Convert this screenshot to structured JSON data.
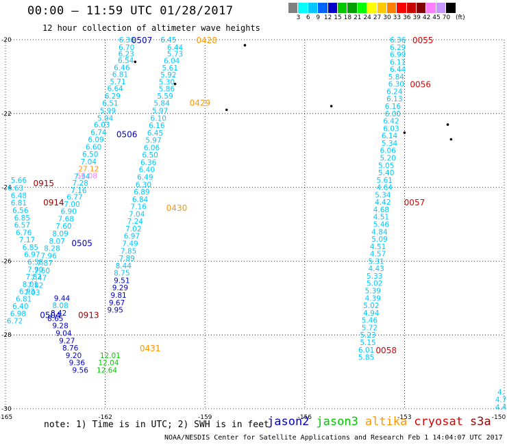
{
  "title": "00:00 – 11:59 UTC 01/28/2017",
  "subtitle": "12 hour collection of altimeter wave heights",
  "scale": {
    "unit": "(ft)",
    "labels": [
      "3",
      "6",
      "9",
      "12",
      "15",
      "18",
      "21",
      "24",
      "27",
      "30",
      "33",
      "36",
      "39",
      "42",
      "45",
      "70"
    ],
    "colors": [
      "#808080",
      "#00ffff",
      "#00c8ff",
      "#0064ff",
      "#0000c8",
      "#00c800",
      "#00a000",
      "#00ff00",
      "#ffff00",
      "#ffc800",
      "#ff8000",
      "#ff0000",
      "#c80000",
      "#800000",
      "#ff80ff",
      "#c896ff",
      "#000000"
    ]
  },
  "axes": {
    "lon_labels": [
      "-165",
      "-162",
      "-159",
      "-156",
      "-153",
      "-150"
    ],
    "lat_labels": [
      "-20",
      "-22",
      "-24",
      "-26",
      "-28",
      "-30"
    ]
  },
  "satellite_colors": {
    "jason2": "#0000c8",
    "jason3": "#00c800",
    "altika": "#ff9600",
    "cryosat": "#dc0000",
    "s3a": "#a00000"
  },
  "tracks": [
    {
      "color": "#00c8ff",
      "points": [
        {
          "lon": -161.35,
          "lat": -20.0,
          "v": "6.36"
        },
        {
          "lon": -161.36,
          "lat": -20.2,
          "v": "6.70"
        },
        {
          "lon": -161.37,
          "lat": -20.38,
          "v": "6.23"
        },
        {
          "lon": -161.38,
          "lat": -20.56,
          "v": "6.54"
        },
        {
          "lon": -161.5,
          "lat": -20.75,
          "v": "6.46"
        },
        {
          "lon": -161.55,
          "lat": -20.94,
          "v": "6.81"
        },
        {
          "lon": -161.62,
          "lat": -21.13,
          "v": "5.71"
        },
        {
          "lon": -161.7,
          "lat": -21.32,
          "v": "6.64"
        },
        {
          "lon": -161.78,
          "lat": -21.52,
          "v": "6.29"
        },
        {
          "lon": -161.85,
          "lat": -21.72,
          "v": "6.51"
        },
        {
          "lon": -161.92,
          "lat": -21.92,
          "v": "5.99"
        },
        {
          "lon": -162.0,
          "lat": -22.12,
          "v": "5.94"
        },
        {
          "lon": -162.1,
          "lat": -22.3,
          "v": "6.03"
        },
        {
          "lon": -162.2,
          "lat": -22.5,
          "v": "6.74"
        },
        {
          "lon": -162.28,
          "lat": -22.7,
          "v": "6.09"
        },
        {
          "lon": -162.35,
          "lat": -22.9,
          "v": "6.60"
        },
        {
          "lon": -162.45,
          "lat": -23.1,
          "v": "6.50"
        },
        {
          "lon": -162.5,
          "lat": -23.3,
          "v": "7.04"
        },
        {
          "lon": -162.7,
          "lat": -23.7,
          "v": "7.34"
        },
        {
          "lon": -162.75,
          "lat": -23.88,
          "v": "7.28"
        },
        {
          "lon": -162.8,
          "lat": -24.08,
          "v": "7.16"
        },
        {
          "lon": -162.92,
          "lat": -24.26,
          "v": "6.77"
        },
        {
          "lon": -163.0,
          "lat": -24.45,
          "v": "7.00"
        },
        {
          "lon": -163.1,
          "lat": -24.65,
          "v": "6.90"
        },
        {
          "lon": -163.18,
          "lat": -24.85,
          "v": "7.68"
        },
        {
          "lon": -163.25,
          "lat": -25.05,
          "v": "7.60"
        },
        {
          "lon": -163.35,
          "lat": -25.25,
          "v": "8.09"
        },
        {
          "lon": -163.45,
          "lat": -25.45,
          "v": "8.07"
        },
        {
          "lon": -163.6,
          "lat": -25.65,
          "v": "8.28"
        },
        {
          "lon": -163.7,
          "lat": -25.85,
          "v": "7.96"
        },
        {
          "lon": -163.82,
          "lat": -26.05,
          "v": "7.87"
        },
        {
          "lon": -163.9,
          "lat": -26.25,
          "v": "7.60"
        },
        {
          "lon": -164.0,
          "lat": -26.45,
          "v": "7.47"
        },
        {
          "lon": -164.1,
          "lat": -26.65,
          "v": "7.82"
        },
        {
          "lon": -164.2,
          "lat": -26.85,
          "v": "7.03"
        }
      ]
    },
    {
      "color": "#00c8ff",
      "points": [
        {
          "lon": -164.6,
          "lat": -23.8,
          "v": "5.66"
        },
        {
          "lon": -164.7,
          "lat": -24.02,
          "v": "6.63"
        },
        {
          "lon": -164.6,
          "lat": -24.22,
          "v": "6.48"
        },
        {
          "lon": -164.6,
          "lat": -24.42,
          "v": "6.81"
        },
        {
          "lon": -164.55,
          "lat": -24.62,
          "v": "6.56"
        },
        {
          "lon": -164.5,
          "lat": -24.82,
          "v": "6.85"
        },
        {
          "lon": -164.5,
          "lat": -25.02,
          "v": "6.57"
        },
        {
          "lon": -164.45,
          "lat": -25.22,
          "v": "6.76"
        },
        {
          "lon": -164.35,
          "lat": -25.42,
          "v": "7.17"
        },
        {
          "lon": -164.25,
          "lat": -25.62,
          "v": "6.85"
        },
        {
          "lon": -164.2,
          "lat": -25.82,
          "v": "6.97"
        },
        {
          "lon": -164.1,
          "lat": -26.02,
          "v": "6.58"
        },
        {
          "lon": -164.1,
          "lat": -26.22,
          "v": "7.90"
        },
        {
          "lon": -164.15,
          "lat": -26.42,
          "v": "7.82"
        },
        {
          "lon": -164.25,
          "lat": -26.62,
          "v": "8.01"
        },
        {
          "lon": -164.35,
          "lat": -26.82,
          "v": "6.93"
        },
        {
          "lon": -164.45,
          "lat": -27.02,
          "v": "6.81"
        },
        {
          "lon": -164.55,
          "lat": -27.22,
          "v": "6.40"
        },
        {
          "lon": -164.62,
          "lat": -27.42,
          "v": "6.98"
        },
        {
          "lon": -164.72,
          "lat": -27.62,
          "v": "6.72"
        }
      ]
    },
    {
      "color": "#00c8ff",
      "points": [
        {
          "lon": -160.1,
          "lat": -20.0,
          "v": "6.45"
        },
        {
          "lon": -159.9,
          "lat": -20.2,
          "v": "6.44"
        },
        {
          "lon": -159.9,
          "lat": -20.38,
          "v": "5.73"
        },
        {
          "lon": -160.0,
          "lat": -20.57,
          "v": "6.04"
        },
        {
          "lon": -160.05,
          "lat": -20.76,
          "v": "5.61"
        },
        {
          "lon": -160.1,
          "lat": -20.95,
          "v": "5.92"
        },
        {
          "lon": -160.15,
          "lat": -21.14,
          "v": "5.30"
        },
        {
          "lon": -160.15,
          "lat": -21.33,
          "v": "5.86"
        },
        {
          "lon": -160.2,
          "lat": -21.52,
          "v": "5.59"
        },
        {
          "lon": -160.3,
          "lat": -21.72,
          "v": "5.84"
        },
        {
          "lon": -160.35,
          "lat": -21.92,
          "v": "5.97"
        },
        {
          "lon": -160.4,
          "lat": -22.12,
          "v": "6.10"
        },
        {
          "lon": -160.45,
          "lat": -22.32,
          "v": "6.16"
        },
        {
          "lon": -160.5,
          "lat": -22.52,
          "v": "6.45"
        },
        {
          "lon": -160.55,
          "lat": -22.72,
          "v": "5.97"
        },
        {
          "lon": -160.6,
          "lat": -22.92,
          "v": "6.06"
        },
        {
          "lon": -160.65,
          "lat": -23.12,
          "v": "6.50"
        },
        {
          "lon": -160.7,
          "lat": -23.32,
          "v": "6.36"
        },
        {
          "lon": -160.75,
          "lat": -23.52,
          "v": "6.40"
        },
        {
          "lon": -160.8,
          "lat": -23.72,
          "v": "6.49"
        },
        {
          "lon": -160.85,
          "lat": -23.92,
          "v": "6.30"
        },
        {
          "lon": -160.9,
          "lat": -24.12,
          "v": "6.89"
        },
        {
          "lon": -160.95,
          "lat": -24.32,
          "v": "6.84"
        },
        {
          "lon": -161.0,
          "lat": -24.52,
          "v": "7.16"
        },
        {
          "lon": -161.05,
          "lat": -24.72,
          "v": "7.04"
        },
        {
          "lon": -161.1,
          "lat": -24.92,
          "v": "7.24"
        },
        {
          "lon": -161.15,
          "lat": -25.12,
          "v": "7.02"
        },
        {
          "lon": -161.2,
          "lat": -25.32,
          "v": "6.97"
        },
        {
          "lon": -161.25,
          "lat": -25.52,
          "v": "7.49"
        },
        {
          "lon": -161.3,
          "lat": -25.72,
          "v": "7.85"
        },
        {
          "lon": -161.35,
          "lat": -25.92,
          "v": "7.89"
        },
        {
          "lon": -161.45,
          "lat": -26.12,
          "v": "8.44"
        },
        {
          "lon": -161.5,
          "lat": -26.32,
          "v": "8.75"
        }
      ]
    },
    {
      "color": "#0000c8",
      "points": [
        {
          "lon": -161.5,
          "lat": -26.52,
          "v": "9.51"
        },
        {
          "lon": -161.55,
          "lat": -26.72,
          "v": "9.29"
        },
        {
          "lon": -161.6,
          "lat": -26.92,
          "v": "9.81"
        },
        {
          "lon": -161.65,
          "lat": -27.12,
          "v": "9.67"
        },
        {
          "lon": -161.7,
          "lat": -27.32,
          "v": "9.95"
        }
      ]
    },
    {
      "color": "#0000c8",
      "points": [
        {
          "lon": -163.3,
          "lat": -27.0,
          "v": "9.44"
        },
        {
          "lon": -163.4,
          "lat": -27.4,
          "v": "8.42"
        },
        {
          "lon": -163.5,
          "lat": -27.55,
          "v": "8.65"
        },
        {
          "lon": -163.35,
          "lat": -27.75,
          "v": "9.28"
        },
        {
          "lon": -163.25,
          "lat": -27.95,
          "v": "9.04"
        },
        {
          "lon": -163.15,
          "lat": -28.15,
          "v": "9.27"
        },
        {
          "lon": -163.05,
          "lat": -28.35,
          "v": "8.76"
        },
        {
          "lon": -162.95,
          "lat": -28.55,
          "v": "9.20"
        },
        {
          "lon": -162.85,
          "lat": -28.75,
          "v": "9.36"
        },
        {
          "lon": -162.75,
          "lat": -28.95,
          "v": "9.56"
        }
      ]
    },
    {
      "color": "#00c8ff",
      "points": [
        {
          "lon": -163.35,
          "lat": -27.2,
          "v": "8.08"
        }
      ]
    },
    {
      "color": "#00c800",
      "points": [
        {
          "lon": -161.85,
          "lat": -28.55,
          "v": "12.01"
        },
        {
          "lon": -161.9,
          "lat": -28.75,
          "v": "12.04"
        },
        {
          "lon": -161.95,
          "lat": -28.95,
          "v": "12.64"
        }
      ]
    },
    {
      "color": "#ff9600",
      "points": [
        {
          "lon": -162.5,
          "lat": -23.5,
          "v": "27.12"
        }
      ]
    },
    {
      "color": "#ff80ff",
      "points": [
        {
          "lon": -162.55,
          "lat": -23.68,
          "v": "56.08"
        }
      ]
    },
    {
      "color": "#00c8ff",
      "points": [
        {
          "lon": -153.2,
          "lat": -20.0,
          "v": "6.36"
        },
        {
          "lon": -153.2,
          "lat": -20.2,
          "v": "6.29"
        },
        {
          "lon": -153.2,
          "lat": -20.4,
          "v": "6.99"
        },
        {
          "lon": -153.2,
          "lat": -20.6,
          "v": "6.11"
        },
        {
          "lon": -153.2,
          "lat": -20.8,
          "v": "6.44"
        },
        {
          "lon": -153.25,
          "lat": -21.0,
          "v": "5.84"
        },
        {
          "lon": -153.25,
          "lat": -21.2,
          "v": "6.30"
        },
        {
          "lon": -153.3,
          "lat": -21.4,
          "v": "6.24"
        },
        {
          "lon": -153.3,
          "lat": -21.6,
          "v": "6.13"
        },
        {
          "lon": -153.35,
          "lat": -21.8,
          "v": "6.16"
        },
        {
          "lon": -153.35,
          "lat": -22.0,
          "v": "6.00"
        },
        {
          "lon": -153.4,
          "lat": -22.2,
          "v": "6.42"
        },
        {
          "lon": -153.4,
          "lat": -22.4,
          "v": "6.03"
        },
        {
          "lon": -153.45,
          "lat": -22.6,
          "v": "6.14"
        },
        {
          "lon": -153.45,
          "lat": -22.8,
          "v": "5.34"
        },
        {
          "lon": -153.5,
          "lat": -23.0,
          "v": "6.06"
        },
        {
          "lon": -153.5,
          "lat": -23.2,
          "v": "5.20"
        },
        {
          "lon": -153.55,
          "lat": -23.4,
          "v": "5.05"
        },
        {
          "lon": -153.55,
          "lat": -23.6,
          "v": "5.40"
        },
        {
          "lon": -153.6,
          "lat": -23.8,
          "v": "5.61"
        },
        {
          "lon": -153.6,
          "lat": -24.0,
          "v": "4.64"
        },
        {
          "lon": -153.65,
          "lat": -24.2,
          "v": "5.34"
        },
        {
          "lon": -153.65,
          "lat": -24.4,
          "v": "4.42"
        },
        {
          "lon": -153.7,
          "lat": -24.6,
          "v": "4.68"
        },
        {
          "lon": -153.7,
          "lat": -24.8,
          "v": "4.51"
        },
        {
          "lon": -153.7,
          "lat": -25.0,
          "v": "5.46"
        },
        {
          "lon": -153.75,
          "lat": -25.2,
          "v": "4.84"
        },
        {
          "lon": -153.75,
          "lat": -25.4,
          "v": "5.09"
        },
        {
          "lon": -153.8,
          "lat": -25.6,
          "v": "4.51"
        },
        {
          "lon": -153.8,
          "lat": -25.8,
          "v": "4.57"
        },
        {
          "lon": -153.85,
          "lat": -26.0,
          "v": "5.31"
        },
        {
          "lon": -153.85,
          "lat": -26.2,
          "v": "4.43"
        },
        {
          "lon": -153.9,
          "lat": -26.4,
          "v": "5.33"
        },
        {
          "lon": -153.9,
          "lat": -26.6,
          "v": "5.02"
        },
        {
          "lon": -153.95,
          "lat": -26.8,
          "v": "5.39"
        },
        {
          "lon": -153.95,
          "lat": -27.0,
          "v": "4.39"
        },
        {
          "lon": -154.0,
          "lat": -27.2,
          "v": "5.02"
        },
        {
          "lon": -154.0,
          "lat": -27.4,
          "v": "4.94"
        },
        {
          "lon": -154.05,
          "lat": -27.6,
          "v": "5.46"
        },
        {
          "lon": -154.05,
          "lat": -27.8,
          "v": "5.72"
        },
        {
          "lon": -154.1,
          "lat": -28.0,
          "v": "5.23"
        },
        {
          "lon": -154.1,
          "lat": -28.2,
          "v": "5.15"
        },
        {
          "lon": -154.15,
          "lat": -28.4,
          "v": "6.01"
        },
        {
          "lon": -154.15,
          "lat": -28.6,
          "v": "5.85"
        }
      ]
    },
    {
      "color": "#00c8ff",
      "points": [
        {
          "lon": -150.1,
          "lat": -29.55,
          "v": "4."
        },
        {
          "lon": -150.1,
          "lat": -29.75,
          "v": "4.7"
        },
        {
          "lon": -150.1,
          "lat": -29.95,
          "v": "4.4"
        }
      ]
    }
  ],
  "time_labels": [
    {
      "lon": -160.9,
      "lat": -20.0,
      "text": "0507",
      "sat": "jason2"
    },
    {
      "lon": -158.95,
      "lat": -20.0,
      "text": "0428",
      "sat": "altika"
    },
    {
      "lon": -159.15,
      "lat": -21.7,
      "text": "0429",
      "sat": "altika"
    },
    {
      "lon": -161.35,
      "lat": -22.55,
      "text": "0506",
      "sat": "jason2"
    },
    {
      "lon": -163.85,
      "lat": -23.88,
      "text": "0915",
      "sat": "s3a"
    },
    {
      "lon": -163.55,
      "lat": -24.4,
      "text": "0914",
      "sat": "s3a"
    },
    {
      "lon": -159.85,
      "lat": -24.55,
      "text": "0430",
      "sat": "altika"
    },
    {
      "lon": -162.7,
      "lat": -25.5,
      "text": "0505",
      "sat": "jason2"
    },
    {
      "lon": -162.5,
      "lat": -27.45,
      "text": "0913",
      "sat": "s3a"
    },
    {
      "lon": -163.65,
      "lat": -27.45,
      "text": "0504",
      "sat": "jason2"
    },
    {
      "lon": -160.65,
      "lat": -28.35,
      "text": "0431",
      "sat": "altika"
    },
    {
      "lon": -152.45,
      "lat": -20.0,
      "text": "0055",
      "sat": "cryosat"
    },
    {
      "lon": -152.52,
      "lat": -21.2,
      "text": "0056",
      "sat": "cryosat"
    },
    {
      "lon": -152.7,
      "lat": -24.4,
      "text": "0057",
      "sat": "cryosat"
    },
    {
      "lon": -153.55,
      "lat": -28.4,
      "text": "0058",
      "sat": "cryosat"
    }
  ],
  "islands": [
    {
      "lon": -159.9,
      "lat": -21.2
    },
    {
      "lon": -161.1,
      "lat": -20.6
    },
    {
      "lon": -157.8,
      "lat": -20.15
    },
    {
      "lon": -158.35,
      "lat": -21.9
    },
    {
      "lon": -155.2,
      "lat": -21.8
    },
    {
      "lon": -153.0,
      "lat": -22.52
    },
    {
      "lon": -151.7,
      "lat": -22.3
    },
    {
      "lon": -151.6,
      "lat": -22.7
    }
  ],
  "note": "note: 1) Time is in UTC; 2) SWH is in feet",
  "legend": [
    {
      "label": "jason2",
      "sat": "jason2"
    },
    {
      "label": "jason3",
      "sat": "jason3"
    },
    {
      "label": "altika",
      "sat": "altika"
    },
    {
      "label": "cryosat",
      "sat": "cryosat"
    },
    {
      "label": "s3a",
      "sat": "s3a"
    }
  ],
  "credit": "NOAA/NESDIS Center for Satellite Applications and Research  Feb  1 14:04:07 UTC 2017"
}
